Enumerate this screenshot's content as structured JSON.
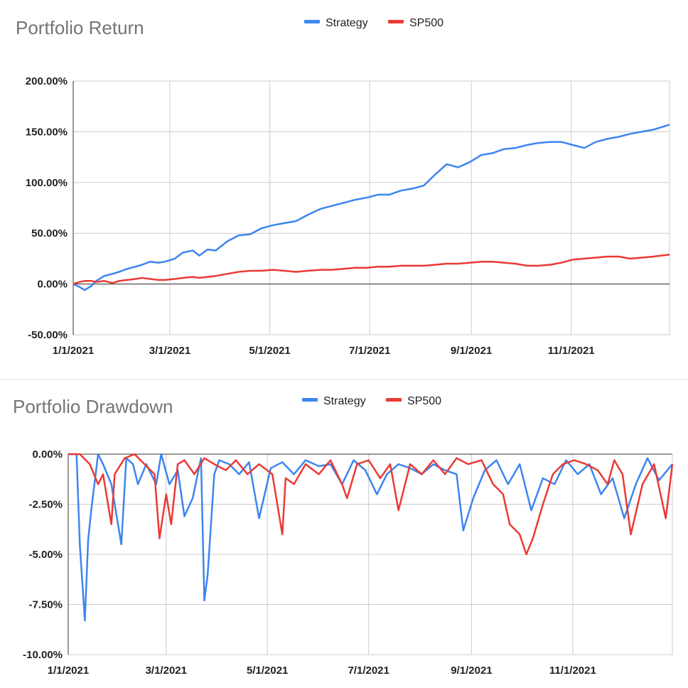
{
  "chart_data": [
    {
      "type": "line",
      "title": "Portfolio Return",
      "legend_position": "top",
      "grid": true,
      "ylim": [
        -50,
        200
      ],
      "y_ticks": [
        "200.00%",
        "150.00%",
        "100.00%",
        "50.00%",
        "0.00%",
        "-50.00%"
      ],
      "y_tick_values": [
        200,
        150,
        100,
        50,
        0,
        -50
      ],
      "x_ticks": [
        "1/1/2021",
        "3/1/2021",
        "5/1/2021",
        "7/1/2021",
        "9/1/2021",
        "11/1/2021"
      ],
      "x_tick_values": [
        "2021-01-01",
        "2021-03-01",
        "2021-05-01",
        "2021-07-01",
        "2021-09-01",
        "2021-11-01"
      ],
      "xlim": [
        "2021-01-01",
        "2021-12-31"
      ],
      "series": [
        {
          "name": "Strategy",
          "color": "#3d85f0",
          "x": [
            "2021-01-01",
            "2021-01-05",
            "2021-01-08",
            "2021-01-12",
            "2021-01-15",
            "2021-01-20",
            "2021-01-25",
            "2021-01-29",
            "2021-02-03",
            "2021-02-08",
            "2021-02-12",
            "2021-02-17",
            "2021-02-22",
            "2021-02-26",
            "2021-03-04",
            "2021-03-09",
            "2021-03-15",
            "2021-03-19",
            "2021-03-24",
            "2021-03-29",
            "2021-04-05",
            "2021-04-12",
            "2021-04-19",
            "2021-04-26",
            "2021-05-03",
            "2021-05-10",
            "2021-05-17",
            "2021-05-24",
            "2021-06-01",
            "2021-06-08",
            "2021-06-15",
            "2021-06-22",
            "2021-06-29",
            "2021-07-06",
            "2021-07-13",
            "2021-07-20",
            "2021-07-27",
            "2021-08-03",
            "2021-08-10",
            "2021-08-17",
            "2021-08-24",
            "2021-08-31",
            "2021-09-07",
            "2021-09-14",
            "2021-09-21",
            "2021-09-28",
            "2021-10-05",
            "2021-10-12",
            "2021-10-19",
            "2021-10-26",
            "2021-11-02",
            "2021-11-09",
            "2021-11-16",
            "2021-11-23",
            "2021-11-30",
            "2021-12-07",
            "2021-12-14",
            "2021-12-21",
            "2021-12-31"
          ],
          "values": [
            0,
            -3,
            -6,
            -2,
            3,
            8,
            10,
            12,
            15,
            17,
            19,
            22,
            21,
            22,
            25,
            31,
            33,
            28,
            34,
            33,
            42,
            48,
            49,
            55,
            58,
            60,
            62,
            68,
            74,
            77,
            80,
            83,
            85,
            88,
            88,
            92,
            94,
            97,
            108,
            118,
            115,
            120,
            127,
            129,
            133,
            134,
            137,
            139,
            140,
            140,
            137,
            134,
            140,
            143,
            145,
            148,
            150,
            152,
            157
          ]
        },
        {
          "name": "SP500",
          "color": "#ea3a35",
          "x": [
            "2021-01-01",
            "2021-01-05",
            "2021-01-08",
            "2021-01-12",
            "2021-01-15",
            "2021-01-20",
            "2021-01-25",
            "2021-01-29",
            "2021-02-03",
            "2021-02-08",
            "2021-02-12",
            "2021-02-17",
            "2021-02-22",
            "2021-02-26",
            "2021-03-04",
            "2021-03-09",
            "2021-03-15",
            "2021-03-19",
            "2021-03-24",
            "2021-03-29",
            "2021-04-05",
            "2021-04-12",
            "2021-04-19",
            "2021-04-26",
            "2021-05-03",
            "2021-05-10",
            "2021-05-17",
            "2021-05-24",
            "2021-06-01",
            "2021-06-08",
            "2021-06-15",
            "2021-06-22",
            "2021-06-29",
            "2021-07-06",
            "2021-07-13",
            "2021-07-20",
            "2021-07-27",
            "2021-08-03",
            "2021-08-10",
            "2021-08-17",
            "2021-08-24",
            "2021-08-31",
            "2021-09-07",
            "2021-09-14",
            "2021-09-21",
            "2021-09-28",
            "2021-10-05",
            "2021-10-12",
            "2021-10-19",
            "2021-10-26",
            "2021-11-02",
            "2021-11-09",
            "2021-11-16",
            "2021-11-23",
            "2021-11-30",
            "2021-12-07",
            "2021-12-14",
            "2021-12-21",
            "2021-12-31"
          ],
          "values": [
            0,
            2,
            3,
            3,
            2,
            3,
            1,
            3,
            4,
            5,
            6,
            5,
            4,
            4,
            5,
            6,
            7,
            6,
            7,
            8,
            10,
            12,
            13,
            13,
            14,
            13,
            12,
            13,
            14,
            14,
            15,
            16,
            16,
            17,
            17,
            18,
            18,
            18,
            19,
            20,
            20,
            21,
            22,
            22,
            21,
            20,
            18,
            18,
            19,
            21,
            24,
            25,
            26,
            27,
            27,
            25,
            26,
            27,
            29
          ]
        }
      ]
    },
    {
      "type": "line",
      "title": "Portfolio Drawdown",
      "legend_position": "top",
      "grid": true,
      "ylim": [
        -10,
        0
      ],
      "y_ticks": [
        "0.00%",
        "-2.50%",
        "-5.00%",
        "-7.50%",
        "-10.00%"
      ],
      "y_tick_values": [
        0,
        -2.5,
        -5,
        -7.5,
        -10
      ],
      "x_ticks": [
        "1/1/2021",
        "3/1/2021",
        "5/1/2021",
        "7/1/2021",
        "9/1/2021",
        "11/1/2021"
      ],
      "x_tick_values": [
        "2021-01-01",
        "2021-03-01",
        "2021-05-01",
        "2021-07-01",
        "2021-09-01",
        "2021-11-01"
      ],
      "xlim": [
        "2021-01-01",
        "2021-12-31"
      ],
      "series": [
        {
          "name": "Strategy",
          "color": "#3d85f0",
          "x": [
            "2021-01-01",
            "2021-01-06",
            "2021-01-08",
            "2021-01-11",
            "2021-01-13",
            "2021-01-15",
            "2021-01-19",
            "2021-01-22",
            "2021-01-27",
            "2021-02-02",
            "2021-02-05",
            "2021-02-09",
            "2021-02-12",
            "2021-02-17",
            "2021-02-23",
            "2021-02-26",
            "2021-03-03",
            "2021-03-08",
            "2021-03-12",
            "2021-03-17",
            "2021-03-22",
            "2021-03-24",
            "2021-03-26",
            "2021-03-30",
            "2021-04-02",
            "2021-04-08",
            "2021-04-14",
            "2021-04-20",
            "2021-04-26",
            "2021-05-03",
            "2021-05-10",
            "2021-05-17",
            "2021-05-24",
            "2021-06-01",
            "2021-06-08",
            "2021-06-15",
            "2021-06-22",
            "2021-06-29",
            "2021-07-06",
            "2021-07-12",
            "2021-07-19",
            "2021-07-26",
            "2021-08-02",
            "2021-08-09",
            "2021-08-16",
            "2021-08-23",
            "2021-08-27",
            "2021-09-02",
            "2021-09-09",
            "2021-09-16",
            "2021-09-23",
            "2021-09-30",
            "2021-10-07",
            "2021-10-14",
            "2021-10-21",
            "2021-10-28",
            "2021-11-04",
            "2021-11-11",
            "2021-11-18",
            "2021-11-25",
            "2021-12-02",
            "2021-12-09",
            "2021-12-16",
            "2021-12-23",
            "2021-12-31"
          ],
          "values": [
            0,
            0,
            -4.5,
            -8.3,
            -4.3,
            -2.7,
            0,
            -0.5,
            -1.5,
            -4.5,
            -0.2,
            -0.5,
            -1.5,
            -0.5,
            -1.5,
            0,
            -1.5,
            -0.8,
            -3.1,
            -2.2,
            -0.2,
            -7.3,
            -6.0,
            -1.0,
            -0.3,
            -0.5,
            -1.0,
            -0.4,
            -3.2,
            -0.7,
            -0.4,
            -1.0,
            -0.3,
            -0.6,
            -0.5,
            -1.5,
            -0.3,
            -0.8,
            -2.0,
            -1.0,
            -0.5,
            -0.7,
            -1.0,
            -0.5,
            -0.8,
            -1.0,
            -3.8,
            -2.2,
            -0.8,
            -0.3,
            -1.5,
            -0.5,
            -2.8,
            -1.2,
            -1.5,
            -0.3,
            -1.0,
            -0.5,
            -2.0,
            -1.2,
            -3.2,
            -1.5,
            -0.2,
            -1.3,
            -0.5
          ]
        },
        {
          "name": "SP500",
          "color": "#ea3a35",
          "x": [
            "2021-01-01",
            "2021-01-08",
            "2021-01-14",
            "2021-01-19",
            "2021-01-22",
            "2021-01-27",
            "2021-01-29",
            "2021-02-04",
            "2021-02-10",
            "2021-02-16",
            "2021-02-22",
            "2021-02-25",
            "2021-03-01",
            "2021-03-04",
            "2021-03-08",
            "2021-03-12",
            "2021-03-18",
            "2021-03-24",
            "2021-03-30",
            "2021-04-06",
            "2021-04-12",
            "2021-04-19",
            "2021-04-26",
            "2021-05-04",
            "2021-05-10",
            "2021-05-12",
            "2021-05-17",
            "2021-05-24",
            "2021-06-01",
            "2021-06-08",
            "2021-06-15",
            "2021-06-18",
            "2021-06-24",
            "2021-07-01",
            "2021-07-08",
            "2021-07-14",
            "2021-07-19",
            "2021-07-26",
            "2021-08-02",
            "2021-08-09",
            "2021-08-16",
            "2021-08-23",
            "2021-08-30",
            "2021-09-07",
            "2021-09-14",
            "2021-09-20",
            "2021-09-24",
            "2021-09-30",
            "2021-10-04",
            "2021-10-08",
            "2021-10-14",
            "2021-10-20",
            "2021-10-26",
            "2021-11-02",
            "2021-11-09",
            "2021-11-16",
            "2021-11-22",
            "2021-11-26",
            "2021-12-01",
            "2021-12-06",
            "2021-12-13",
            "2021-12-20",
            "2021-12-27",
            "2021-12-31"
          ],
          "values": [
            0,
            0,
            -0.5,
            -1.5,
            -1.0,
            -3.5,
            -1.0,
            -0.2,
            0,
            -0.5,
            -1.0,
            -4.2,
            -2.0,
            -3.5,
            -0.5,
            -0.3,
            -1.0,
            -0.2,
            -0.5,
            -0.8,
            -0.3,
            -1.0,
            -0.5,
            -1.0,
            -4.0,
            -1.2,
            -1.5,
            -0.5,
            -1.0,
            -0.3,
            -1.5,
            -2.2,
            -0.5,
            -0.3,
            -1.2,
            -0.5,
            -2.8,
            -0.5,
            -1.0,
            -0.3,
            -1.0,
            -0.2,
            -0.5,
            -0.3,
            -1.5,
            -2.0,
            -3.5,
            -4.0,
            -5.0,
            -4.2,
            -2.5,
            -1.0,
            -0.5,
            -0.3,
            -0.5,
            -0.8,
            -1.5,
            -0.3,
            -1.0,
            -4.0,
            -1.5,
            -0.5,
            -3.2,
            -0.5
          ]
        }
      ]
    }
  ]
}
